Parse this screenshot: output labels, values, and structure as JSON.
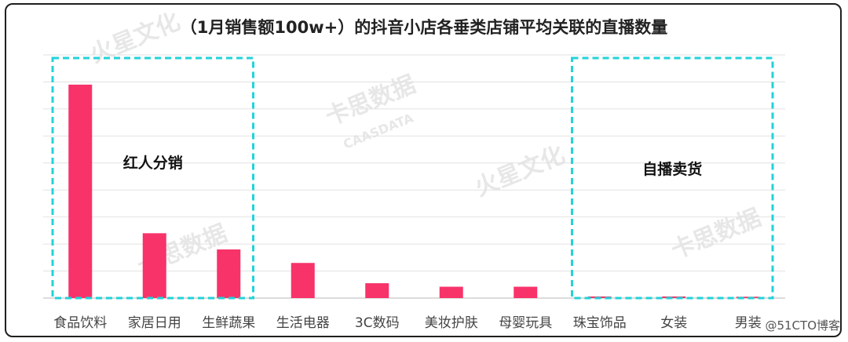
{
  "chart_data": {
    "type": "bar",
    "title": "（1月销售额100w+）的抖音小店各垂类店铺平均关联的直播数量",
    "xlabel": "",
    "ylabel": "",
    "categories": [
      "食品饮料",
      "家居日用",
      "生鲜蔬果",
      "生活电器",
      "3C数码",
      "美妆护肤",
      "母婴玩具",
      "珠宝饰品",
      "女装",
      "男装"
    ],
    "values": [
      7.9,
      2.4,
      1.8,
      1.3,
      0.55,
      0.42,
      0.42,
      0.06,
      0.06,
      0.05
    ],
    "ylim": [
      0,
      9
    ],
    "y_tick_count": 9,
    "grid": true,
    "bar_color": "#f7336a",
    "highlight_color": "#22d3d8",
    "annotations": [
      {
        "text": "红人分销",
        "categories": [
          "食品饮料",
          "家居日用",
          "生鲜蔬果"
        ]
      },
      {
        "text": "自播卖货",
        "categories": [
          "珠宝饰品",
          "女装",
          "男装"
        ]
      }
    ]
  },
  "watermark": {
    "brand_a": "火星文化",
    "brand_b": "卡思数据",
    "brand_b_en": "CAASDATA"
  },
  "credit": "@51CTO博客"
}
